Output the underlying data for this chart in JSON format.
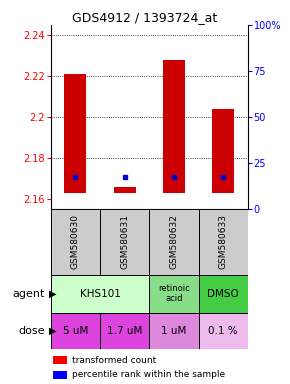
{
  "title": "GDS4912 / 1393724_at",
  "samples": [
    "GSM580630",
    "GSM580631",
    "GSM580632",
    "GSM580633"
  ],
  "ylim": [
    2.155,
    2.245
  ],
  "yticks": [
    2.16,
    2.18,
    2.2,
    2.22,
    2.24
  ],
  "ytick_labels": [
    "2.16",
    "2.18",
    "2.2",
    "2.22",
    "2.24"
  ],
  "right_yticks": [
    0,
    25,
    50,
    75,
    100
  ],
  "right_ytick_labels": [
    "0",
    "25",
    "50",
    "75",
    "100%"
  ],
  "bar_bottoms": [
    2.163,
    2.163,
    2.163,
    2.163
  ],
  "bar_tops": [
    2.221,
    2.166,
    2.228,
    2.204
  ],
  "percentile_values": [
    2.171,
    2.171,
    2.171,
    2.171
  ],
  "bar_color": "#cc0000",
  "percentile_color": "#0000cc",
  "agent_groups": [
    {
      "label": "KHS101",
      "cols": [
        0,
        1
      ],
      "color": "#ccffcc"
    },
    {
      "label": "retinoic\nacid",
      "cols": [
        2,
        2
      ],
      "color": "#88dd88"
    },
    {
      "label": "DMSO",
      "cols": [
        3,
        3
      ],
      "color": "#44cc44"
    }
  ],
  "doses": [
    "5 uM",
    "1.7 uM",
    "1 uM",
    "0.1 %"
  ],
  "dose_colors": [
    "#dd44dd",
    "#dd44dd",
    "#dd88dd",
    "#eebbed"
  ],
  "sample_bg": "#cccccc",
  "legend_red": "transformed count",
  "legend_blue": "percentile rank within the sample"
}
